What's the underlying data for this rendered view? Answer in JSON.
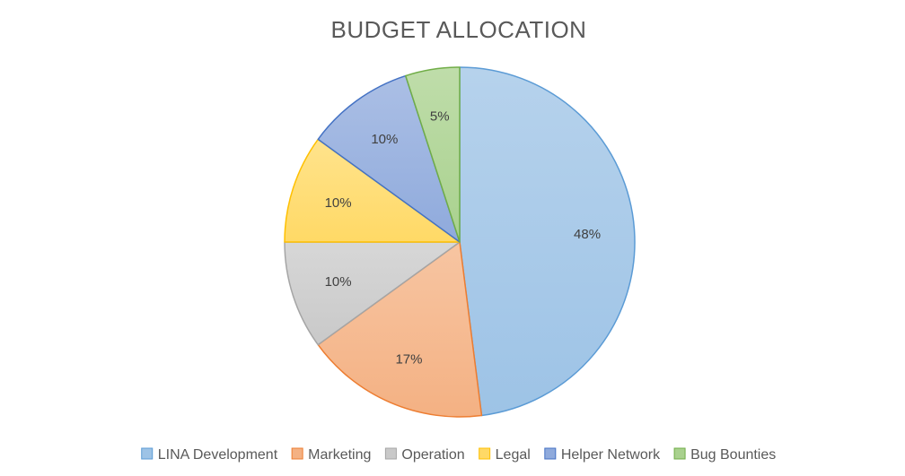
{
  "chart_data": {
    "type": "pie",
    "title": "BUDGET ALLOCATION",
    "legend_position": "bottom",
    "start_angle_deg": 0,
    "direction": "clockwise",
    "slices": [
      {
        "name": "LINA Development",
        "value": 48,
        "label": "48%",
        "color": "#9dc3e6",
        "stroke": "#5b9bd5"
      },
      {
        "name": "Marketing",
        "value": 17,
        "label": "17%",
        "color": "#f4b183",
        "stroke": "#ed7d31"
      },
      {
        "name": "Operation",
        "value": 10,
        "label": "10%",
        "color": "#c9c9c9",
        "stroke": "#a5a5a5"
      },
      {
        "name": "Legal",
        "value": 10,
        "label": "10%",
        "color": "#ffd966",
        "stroke": "#ffc000"
      },
      {
        "name": "Helper Network",
        "value": 10,
        "label": "10%",
        "color": "#8faadc",
        "stroke": "#4472c4"
      },
      {
        "name": "Bug Bounties",
        "value": 5,
        "label": "5%",
        "color": "#a9d18e",
        "stroke": "#70ad47"
      }
    ]
  }
}
